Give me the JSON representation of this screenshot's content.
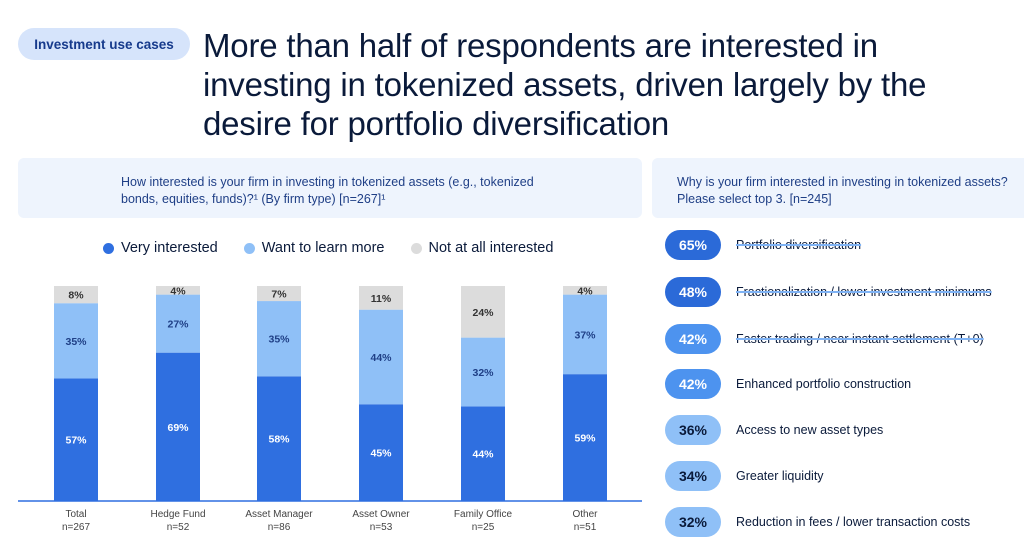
{
  "header": {
    "tag": "Investment use cases",
    "headline": "More than half of respondents are interested in investing in tokenized assets, driven largely by the desire for portfolio diversification"
  },
  "colors": {
    "very": "#2f6fe0",
    "learn": "#8fc0f7",
    "not": "#dcdcdc",
    "pill_dark": "#2b6ad8",
    "pill_mid": "#4d93ef",
    "pill_light": "#8fc0f7"
  },
  "left_panel": {
    "question": "How interested is your firm in investing in tokenized assets (e.g., tokenized bonds, equities, funds)?¹ (By firm type) [n=267]¹"
  },
  "right_panel": {
    "question": "Why is your firm interested in investing in tokenized assets? Please select top 3. [n=245]",
    "reasons": [
      {
        "pct": "65%",
        "label": "Portfolio diversification",
        "strike": true,
        "shade": "dark"
      },
      {
        "pct": "48%",
        "label": "Fractionalization / lower investment minimums",
        "strike": true,
        "shade": "dark"
      },
      {
        "pct": "42%",
        "label": "Faster trading / near instant settlement (T+0)",
        "strike": true,
        "shade": "mid"
      },
      {
        "pct": "42%",
        "label": "Enhanced portfolio construction",
        "strike": false,
        "shade": "mid"
      },
      {
        "pct": "36%",
        "label": "Access to new asset types",
        "strike": false,
        "shade": "light"
      },
      {
        "pct": "34%",
        "label": "Greater liquidity",
        "strike": false,
        "shade": "light"
      },
      {
        "pct": "32%",
        "label": "Reduction in fees / lower transaction costs",
        "strike": false,
        "shade": "light"
      }
    ]
  },
  "chart_data": {
    "type": "bar",
    "stacked": true,
    "legend_position": "top",
    "categories": [
      "Total",
      "Hedge Fund",
      "Asset Manager",
      "Asset Owner",
      "Family Office",
      "Other"
    ],
    "category_n": [
      "n=267",
      "n=52",
      "n=86",
      "n=53",
      "n=25",
      "n=51"
    ],
    "series": [
      {
        "name": "Very interested",
        "values": [
          57,
          69,
          58,
          45,
          44,
          59
        ]
      },
      {
        "name": "Want to learn more",
        "values": [
          35,
          27,
          35,
          44,
          32,
          37
        ]
      },
      {
        "name": "Not at all interested",
        "values": [
          8,
          4,
          7,
          11,
          24,
          4
        ]
      }
    ],
    "ylim": [
      0,
      100
    ]
  }
}
